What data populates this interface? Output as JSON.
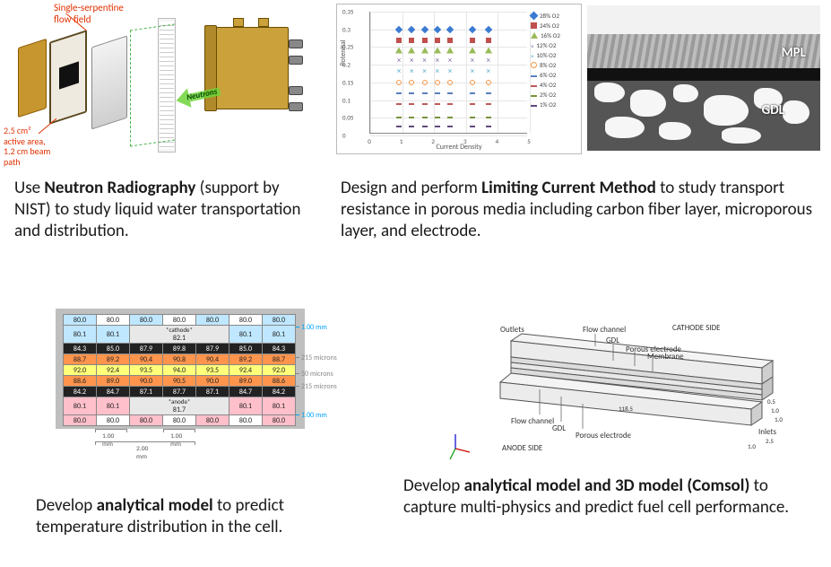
{
  "q1": {
    "flowfield_label": "Single-serpentine\nflow field",
    "active_area_label": "2.5 cm²\nactive area,\n1.2 cm beam\npath",
    "arrow_label": "Neutrons",
    "flowfield_color": "#e03000",
    "gold_color": "#c7962f",
    "dark_plate_color": "#3a2a10",
    "silver_gradient_from": "#f2f2f2",
    "silver_gradient_to": "#cfcfcf",
    "arrow_color": "#6ed33a",
    "caption_pre": "Use ",
    "caption_bold": "Neutron Radiography",
    "caption_post": " (support by NIST) to study liquid water transportation and distribution."
  },
  "q2": {
    "chart": {
      "type": "scatter",
      "xlabel": "Current Density",
      "ylabel": "Potential",
      "xlim": [
        0,
        5
      ],
      "ylim": [
        0,
        0.35
      ],
      "xtick_step": 1,
      "ytick_step": 0.05,
      "background_color": "#ffffff",
      "grid_color": "#e6e6e6",
      "border_color": "#bbbbbb",
      "axis_color": "#888888",
      "label_fontsize": 8,
      "tick_fontsize": 7,
      "x_values": [
        0.9,
        1.3,
        1.7,
        2.1,
        2.5,
        3.2,
        3.7
      ],
      "y_levels": [
        0.3,
        0.27,
        0.24,
        0.21,
        0.18,
        0.15,
        0.12,
        0.09,
        0.05,
        0.025
      ],
      "series": [
        {
          "label": "28% O2",
          "marker": "diamond",
          "color": "#3b7bd1"
        },
        {
          "label": "24% O2",
          "marker": "square",
          "color": "#c0504d"
        },
        {
          "label": "16% O2",
          "marker": "triangle",
          "color": "#9bbb59"
        },
        {
          "label": "12% O2",
          "marker": "x",
          "color": "#8064a2"
        },
        {
          "label": "10% O2",
          "marker": "x",
          "color": "#4bacc6"
        },
        {
          "label": "8% O2",
          "marker": "circle",
          "color": "#f79646"
        },
        {
          "label": "6% O2",
          "marker": "dash",
          "color": "#5a7fbf"
        },
        {
          "label": "4% O2",
          "marker": "dash",
          "color": "#bf5a5a"
        },
        {
          "label": "2% O2",
          "marker": "dash",
          "color": "#77933c"
        },
        {
          "label": "1% O2",
          "marker": "dash",
          "color": "#604a7b"
        }
      ]
    },
    "sem": {
      "mpl_label": "MPL",
      "gdl_label": "GDL",
      "bg_color": "#555555",
      "sky_color": "#f2f2f2",
      "dark_band_color": "#111111",
      "blob_color": "#f6f6f6",
      "label_color": "#ffffff"
    },
    "caption_pre": "Design and perform ",
    "caption_bold": "Limiting Current Method",
    "caption_post": " to study transport resistance in porous media including carbon fiber layer, microporous layer, and electrode."
  },
  "q3": {
    "table": {
      "type": "table-heatmap",
      "cathode_label": "*cathode*",
      "anode_label": "*anode*",
      "row_colors": [
        "#bfe7ff",
        "#000000",
        "#ff944d",
        "#ffff7a",
        "#ff944d",
        "#000000",
        "#ffc0cb"
      ],
      "cathode_center_value": 82.1,
      "anode_center_value": 81.7,
      "rows": [
        [
          80.0,
          80.0,
          80.0,
          80.0,
          80.0,
          80.0,
          80.0
        ],
        [
          80.1,
          80.1,
          null,
          80.1,
          null,
          80.1,
          80.1
        ],
        [
          84.3,
          85.0,
          87.9,
          89.8,
          87.9,
          85.0,
          84.3
        ],
        [
          88.7,
          89.2,
          90.4,
          90.8,
          90.4,
          89.2,
          88.7
        ],
        [
          92.0,
          92.4,
          93.5,
          94.0,
          93.5,
          92.4,
          92.0
        ],
        [
          88.6,
          89.0,
          90.0,
          90.5,
          90.0,
          89.0,
          88.6
        ],
        [
          84.2,
          84.7,
          87.1,
          87.7,
          87.1,
          84.7,
          84.2
        ],
        [
          80.1,
          80.1,
          null,
          80.1,
          null,
          80.1,
          80.1
        ],
        [
          80.0,
          80.0,
          80.0,
          80.0,
          80.0,
          80.0,
          80.0
        ]
      ],
      "row_color_seq": [
        "#bfe7ff",
        "#bfe7ff",
        "#222222",
        "#ff944d",
        "#ffff7a",
        "#ff944d",
        "#222222",
        "#ffc0cb",
        "#ffc0cb"
      ],
      "text_colors": [
        "#222",
        "#222",
        "#fff",
        "#222",
        "#222",
        "#222",
        "#fff",
        "#222",
        "#222"
      ],
      "right_dims": [
        {
          "label": "1.00 mm",
          "color": "#00a2ff"
        },
        {
          "label": "215 microns",
          "color": "#888888"
        },
        {
          "label": "50 microns",
          "color": "#888888"
        },
        {
          "label": "215 microns",
          "color": "#888888"
        },
        {
          "label": "1.00 mm",
          "color": "#00a2ff"
        }
      ],
      "bottom_dims": [
        {
          "label": "1.00",
          "unit": "mm"
        },
        {
          "label": "1.00",
          "unit": "mm"
        },
        {
          "label": "2.00",
          "unit": "mm"
        }
      ],
      "surround_color": "#bfbfbf"
    },
    "caption_pre": "Develop ",
    "caption_bold": "analytical model",
    "caption_post": " to predict temperature distribution in the cell."
  },
  "q4": {
    "diagram": {
      "type": "3d-isometric",
      "labels": {
        "outlets": "Outlets",
        "inlets": "Inlets",
        "cathode_side": "CATHODE SIDE",
        "anode_side": "ANODE SIDE",
        "flow_channel": "Flow channel",
        "gdl": "GDL",
        "porous_electrode": "Porous electrode",
        "membrane": "Membrane"
      },
      "stroke_color": "#555555",
      "fill_light": "#f4f4f4",
      "fill_mid": "#dcdcdc",
      "fill_dark": "#bcbcbc",
      "axis_colors": {
        "x": "#cc0000",
        "y": "#009900",
        "z": "#0000cc"
      },
      "dim_labels": [
        "0.5",
        "1.0",
        "1.0",
        "2.5",
        "1.0",
        "118.5"
      ],
      "dim_fontsize": 7
    },
    "caption_pre": "Develop ",
    "caption_bold": "analytical model and 3D model (Comsol)",
    "caption_post": " to capture multi-physics and predict fuel cell performance."
  }
}
